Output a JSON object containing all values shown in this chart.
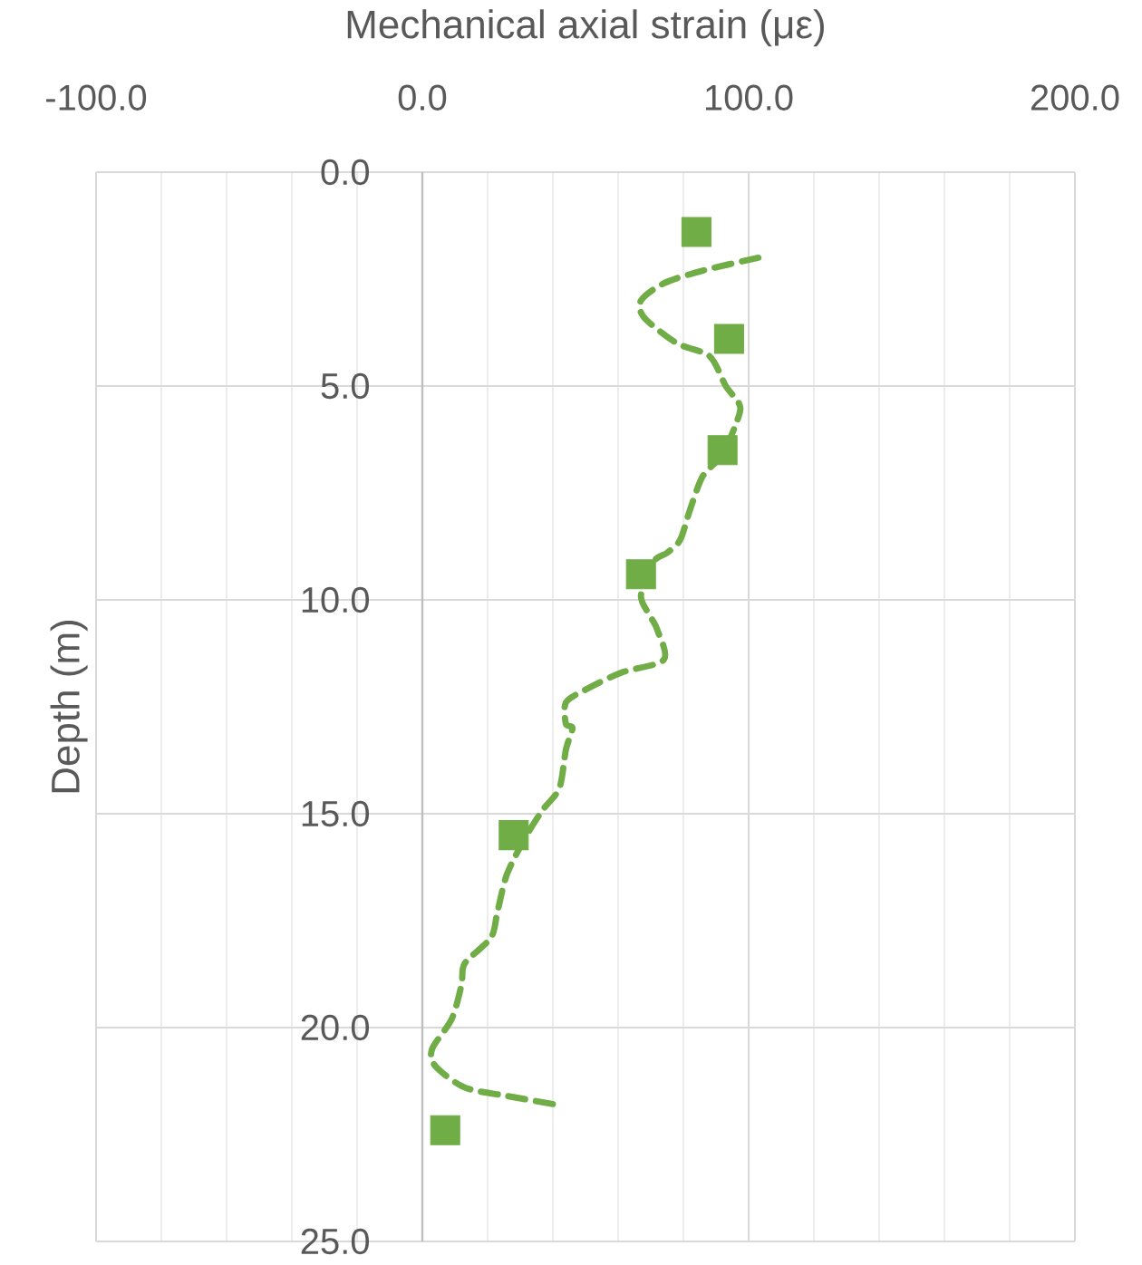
{
  "chart_data": {
    "type": "scatter",
    "xlabel": "Mechanical axial strain (με)",
    "ylabel": "Depth (m)",
    "xlim": [
      -100,
      200
    ],
    "xticks": [
      {
        "value": -100,
        "label": "-100.0"
      },
      {
        "value": -80,
        "label": null
      },
      {
        "value": -60,
        "label": null
      },
      {
        "value": -40,
        "label": null
      },
      {
        "value": -20,
        "label": null
      },
      {
        "value": 0,
        "label": "0.0"
      },
      {
        "value": 20,
        "label": null
      },
      {
        "value": 40,
        "label": null
      },
      {
        "value": 60,
        "label": null
      },
      {
        "value": 80,
        "label": null
      },
      {
        "value": 100,
        "label": "100.0"
      },
      {
        "value": 120,
        "label": null
      },
      {
        "value": 140,
        "label": null
      },
      {
        "value": 160,
        "label": null
      },
      {
        "value": 180,
        "label": null
      },
      {
        "value": 200,
        "label": "200.0"
      }
    ],
    "ylim": [
      25,
      0
    ],
    "yticks": [
      {
        "value": 0,
        "label": "0.0"
      },
      {
        "value": 5,
        "label": "5.0"
      },
      {
        "value": 10,
        "label": "10.0"
      },
      {
        "value": 15,
        "label": "15.0"
      },
      {
        "value": 20,
        "label": "20.0"
      },
      {
        "value": 25,
        "label": "25.0"
      }
    ],
    "grid": true,
    "series": [
      {
        "type": "scatter",
        "marker": "square",
        "color": "#70ad47",
        "x": [
          84,
          94,
          92,
          67,
          28,
          7
        ],
        "values": [
          1.4,
          3.9,
          6.5,
          9.4,
          15.5,
          22.4
        ]
      },
      {
        "type": "line",
        "line_style": "dashed",
        "marker": "none",
        "color": "#70ad47",
        "x": [
          103,
          86,
          74,
          67,
          68,
          78,
          88,
          93,
          97,
          97,
          92,
          86,
          82,
          79,
          75,
          71,
          67,
          70,
          72,
          74,
          61,
          50,
          44,
          44,
          46,
          44,
          42,
          37,
          32,
          26,
          23,
          21,
          13,
          12,
          9,
          3,
          4,
          13,
          26,
          41
        ],
        "values": [
          2.0,
          2.3,
          2.6,
          3.0,
          3.4,
          4.0,
          4.3,
          5.0,
          5.4,
          5.7,
          6.6,
          7.1,
          7.9,
          8.6,
          8.9,
          9.1,
          9.9,
          10.4,
          10.7,
          11.4,
          11.7,
          12.1,
          12.4,
          12.9,
          13.0,
          13.5,
          14.4,
          14.9,
          15.5,
          16.4,
          17.3,
          17.9,
          18.5,
          19.0,
          19.8,
          20.5,
          20.9,
          21.4,
          21.6,
          21.8
        ]
      }
    ]
  }
}
